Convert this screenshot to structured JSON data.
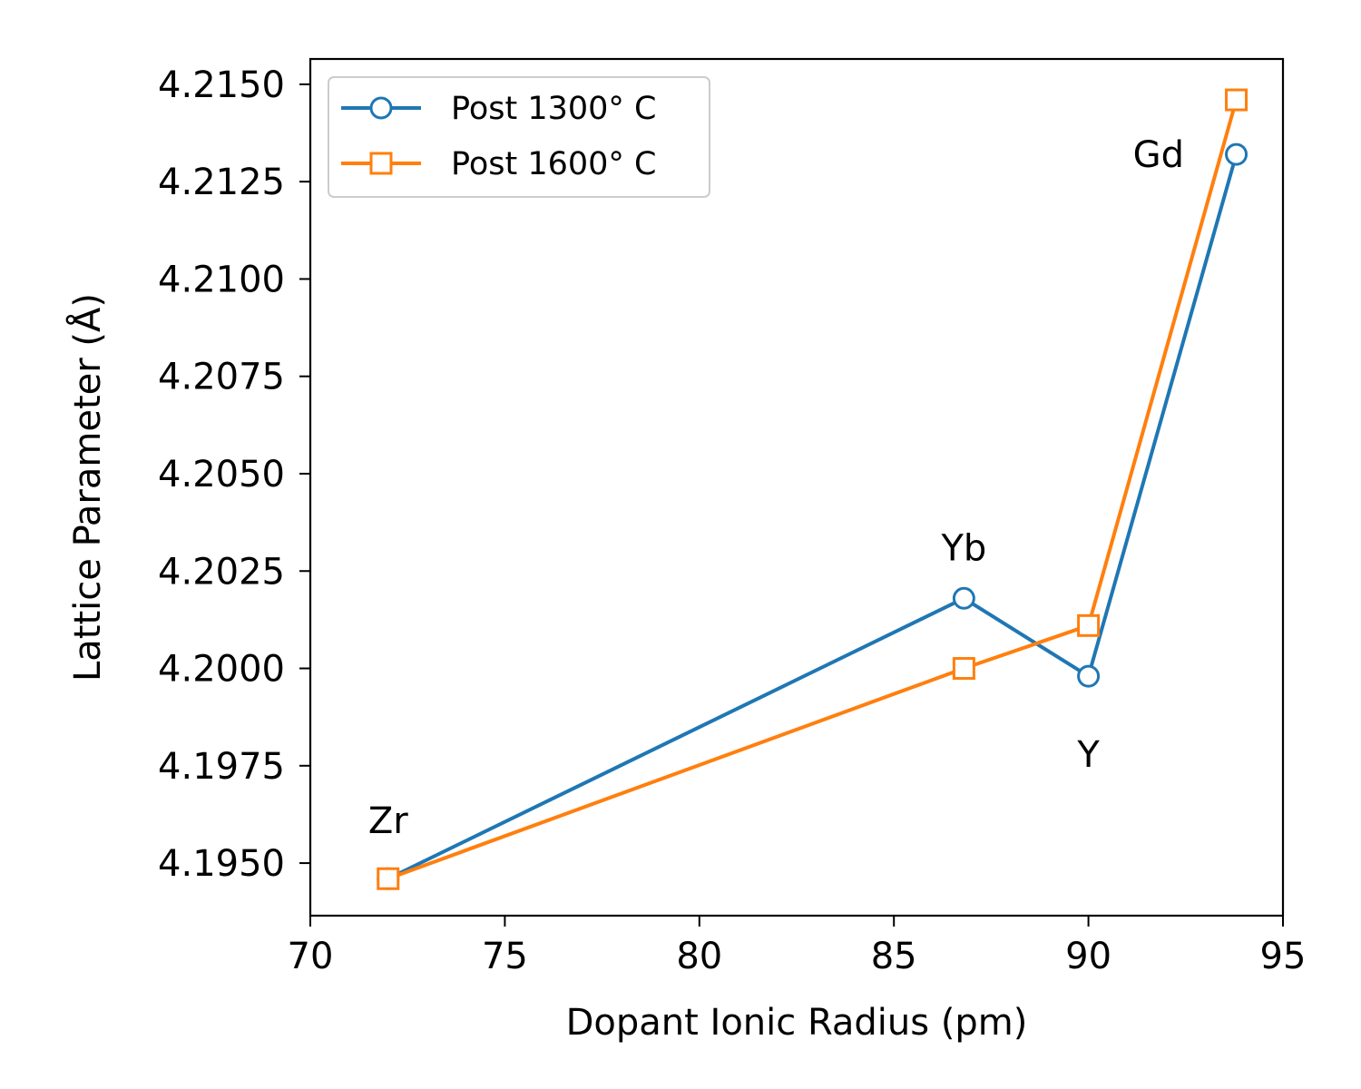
{
  "chart_data": {
    "type": "line",
    "xlabel": "Dopant Ionic Radius (pm)",
    "ylabel": "Lattice Parameter (Å)",
    "xlim": [
      70,
      95
    ],
    "ylim": [
      4.19365,
      4.21565
    ],
    "xticks": [
      70,
      75,
      80,
      85,
      90,
      95
    ],
    "xtick_labels": [
      "70",
      "75",
      "80",
      "85",
      "90",
      "95"
    ],
    "yticks": [
      4.195,
      4.1975,
      4.2,
      4.2025,
      4.205,
      4.2075,
      4.21,
      4.2125,
      4.215
    ],
    "ytick_labels": [
      "4.1950",
      "4.1975",
      "4.2000",
      "4.2025",
      "4.2050",
      "4.2075",
      "4.2100",
      "4.2125",
      "4.2150"
    ],
    "grid": false,
    "legend": {
      "position": "top-left"
    },
    "series": [
      {
        "name": "Post 1300° C",
        "color": "#1f77b4",
        "marker": "circle",
        "x": [
          72,
          86.8,
          90,
          93.8
        ],
        "y": [
          4.1946,
          4.2018,
          4.1998,
          4.2132
        ]
      },
      {
        "name": "Post 1600° C",
        "color": "#ff7f0e",
        "marker": "square",
        "x": [
          72,
          86.8,
          90,
          93.8
        ],
        "y": [
          4.1946,
          4.2,
          4.2011,
          4.2146
        ]
      }
    ],
    "annotations": [
      {
        "text": "Zr",
        "x": 72,
        "y": 4.1961
      },
      {
        "text": "Yb",
        "x": 86.8,
        "y": 4.2031
      },
      {
        "text": "Y",
        "x": 90,
        "y": 4.1978
      },
      {
        "text": "Gd",
        "x": 91.8,
        "y": 4.2132
      }
    ]
  }
}
